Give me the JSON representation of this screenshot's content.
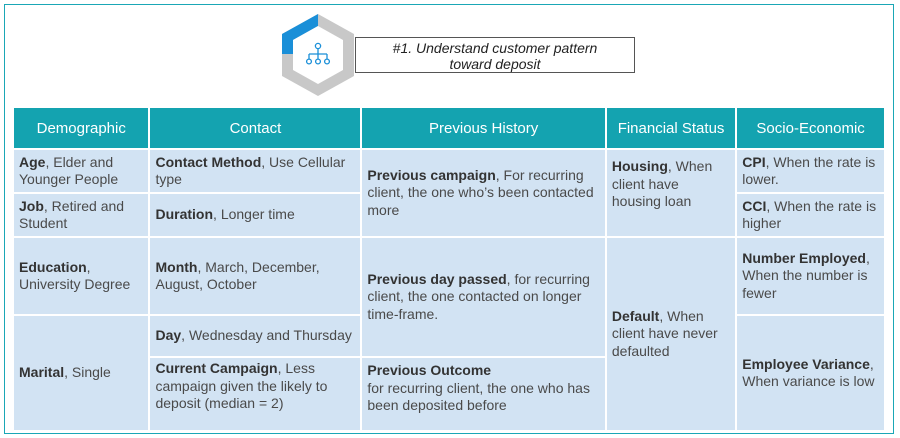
{
  "header": {
    "title_line1": "#1. Understand customer pattern",
    "title_line2": "toward deposit"
  },
  "icons": {
    "hexagon": "hierarchy-network-icon"
  },
  "colors": {
    "header_bg": "#14a3b0",
    "cell_bg": "#d2e3f3",
    "accent_blue": "#1a8fd8",
    "hex_gray": "#c8c8c8"
  },
  "table": {
    "headers": [
      "Demographic",
      "Contact",
      "Previous History",
      "Financial Status",
      "Socio-Economic"
    ],
    "cells": {
      "age_b": "Age",
      "age_t": ", Elder and Younger People",
      "job_b": "Job",
      "job_t": ", Retired and Student",
      "edu_b": "Education",
      "edu_t": ", University Degree",
      "marital_b": "Marital",
      "marital_t": ", Single",
      "cm_b": "Contact Method",
      "cm_t": ", Use Cellular type",
      "dur_b": "Duration",
      "dur_t": ", Longer time",
      "month_b": "Month",
      "month_t": ", March, December, August, October",
      "day_b": "Day",
      "day_t": ", Wednesday and Thursday",
      "cc_b": "Current Campaign",
      "cc_t": ", Less campaign given the likely to deposit (median = 2)",
      "pc_b": "Previous campaign",
      "pc_t": ", For recurring client, the one who’s been contacted more",
      "pdp_b": "Previous day passed",
      "pdp_t": ", for recurring client, the one contacted on longer time-frame.",
      "po_b": "Previous Outcome",
      "po_t": "for recurring client, the one who has been deposited before",
      "housing_b": "Housing",
      "housing_t": ", When client have housing loan",
      "default_b": "Default",
      "default_t": ", When client have never defaulted",
      "cpi_b": "CPI",
      "cpi_t": ", When the rate is lower.",
      "cci_b": "CCI",
      "cci_t": ", When the rate is higher",
      "ne_b": "Number Employed",
      "ne_t": ", When the number is fewer",
      "ev_b": "Employee Variance",
      "ev_t": ", When variance is low"
    }
  }
}
